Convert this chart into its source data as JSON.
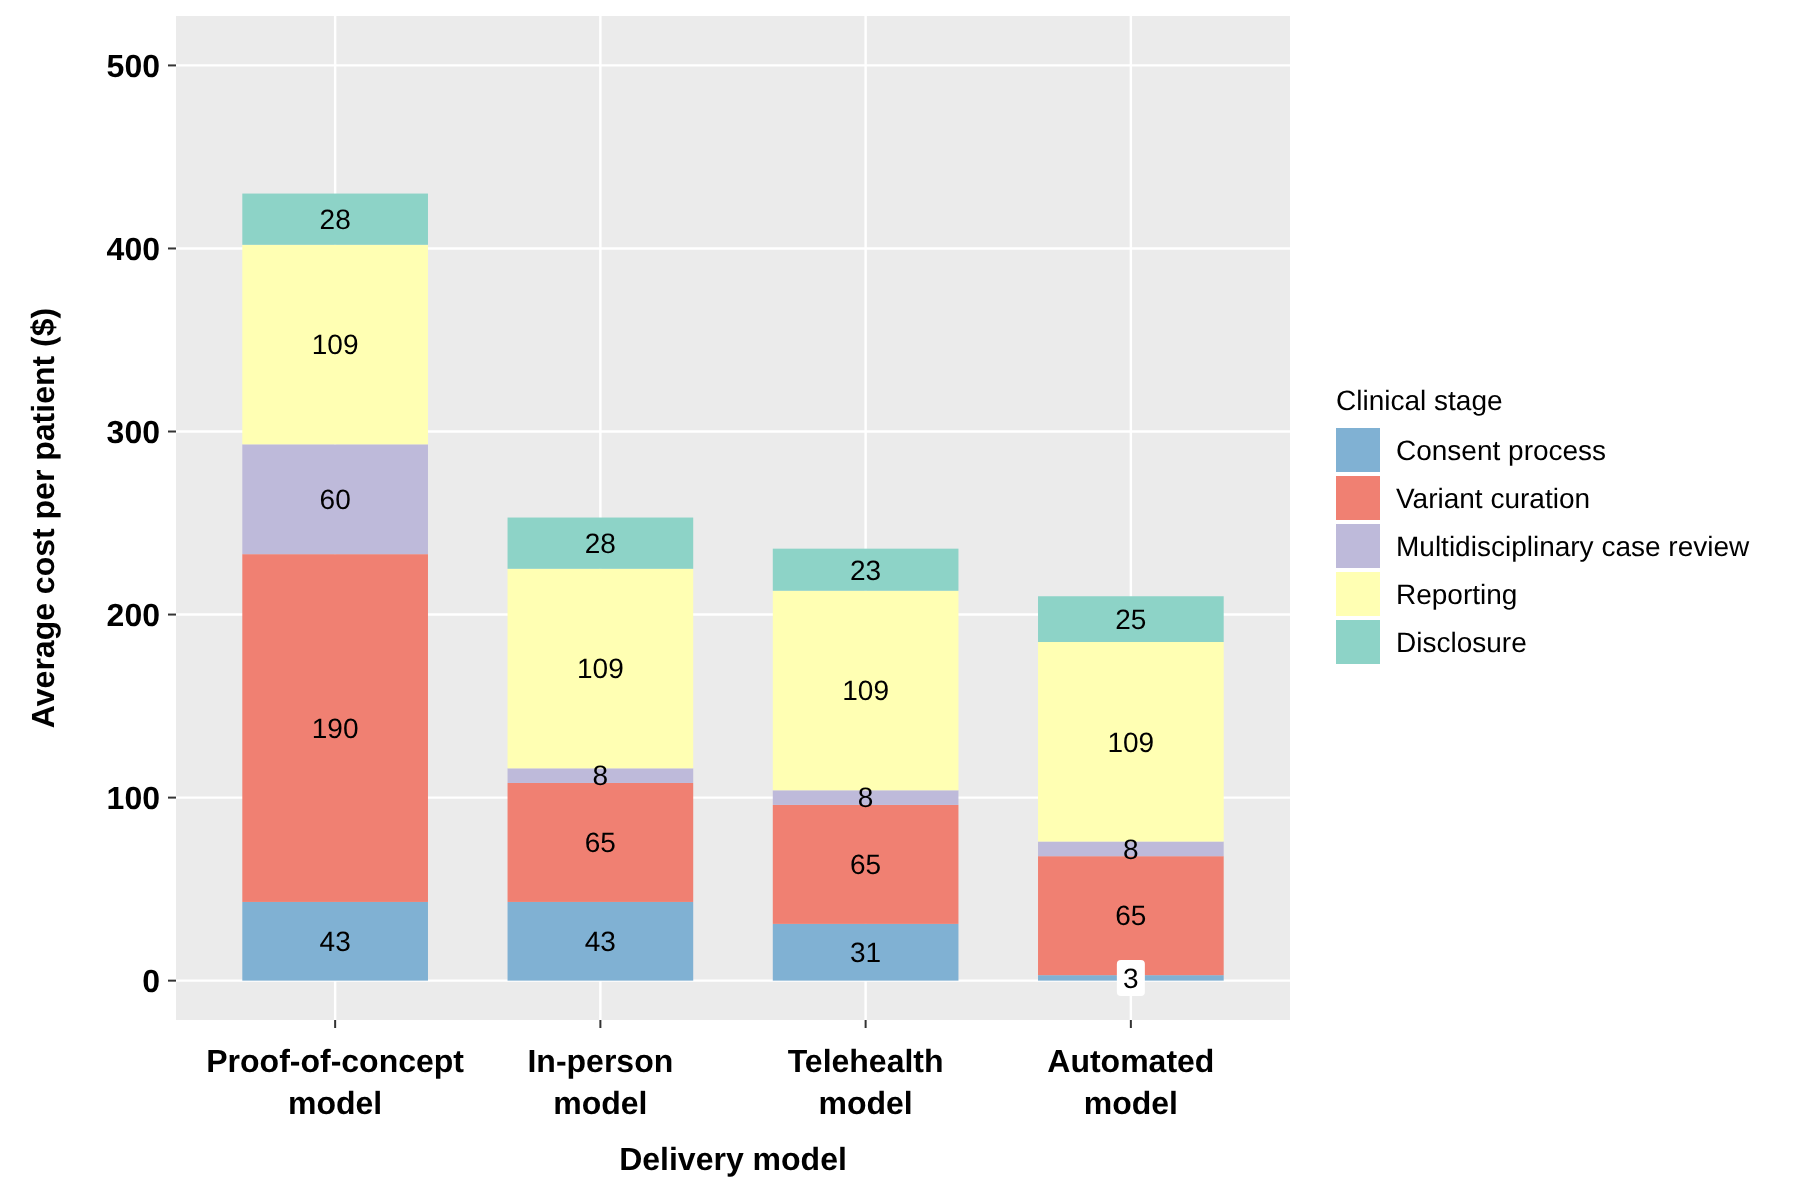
{
  "chart_data": {
    "type": "bar",
    "stacked": true,
    "xlabel": "Delivery model",
    "ylabel": "Average cost per patient ($)",
    "legend_title": "Clinical stage",
    "legend": "right",
    "grid": true,
    "data_labels": true,
    "categories": [
      "Proof-of-concept model",
      "In-person model",
      "Telehealth model",
      "Automated model"
    ],
    "ylim": [
      -21.5,
      527
    ],
    "yticks": [
      0,
      100,
      200,
      300,
      400,
      500
    ],
    "series": [
      {
        "name": "Consent process",
        "color": "#80b1d3",
        "values": [
          43,
          43,
          31,
          3
        ]
      },
      {
        "name": "Variant curation",
        "color": "#f08072",
        "values": [
          190,
          65,
          65,
          65
        ]
      },
      {
        "name": "Multidisciplinary case review",
        "color": "#bebada",
        "values": [
          60,
          8,
          8,
          8
        ]
      },
      {
        "name": "Reporting",
        "color": "#ffffb3",
        "values": [
          109,
          109,
          109,
          109
        ]
      },
      {
        "name": "Disclosure",
        "color": "#8dd3c7",
        "values": [
          28,
          28,
          23,
          25
        ]
      }
    ]
  }
}
